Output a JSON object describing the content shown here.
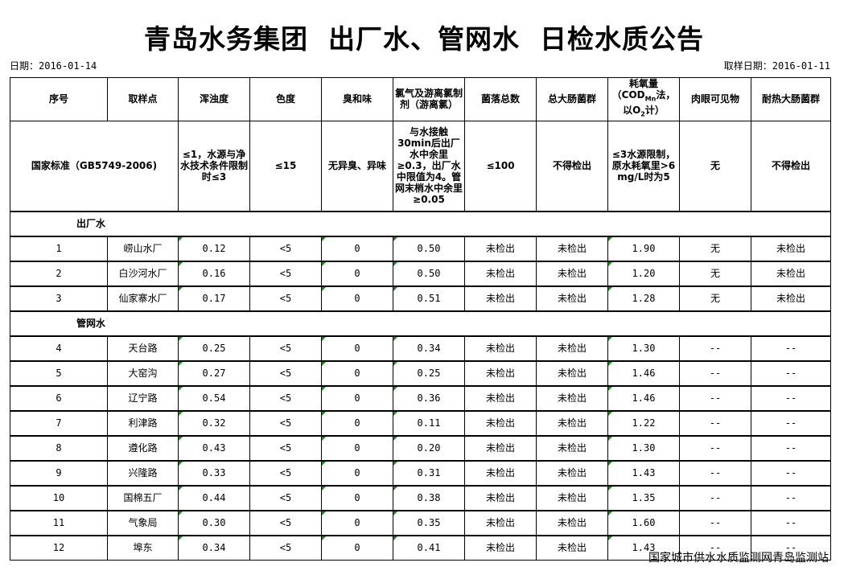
{
  "title": "青岛水务集团  出厂水、管网水  日检水质公告",
  "report_date_label": "日期：2016-01-14",
  "sampling_date_label": "取样日期：2016-01-11",
  "headers": [
    "序号",
    "取样点",
    "浑浊度",
    "色度",
    "臭和味",
    "氯气及游离氯制剂（游离氯）",
    "菌落总数",
    "总大肠菌群",
    "耗氧量（COD_Mn法，以O2计）",
    "肉眼可见物",
    "耐热大肠菌群"
  ],
  "cod_header": {
    "main": "耗氧量",
    "line2_pre": "（COD",
    "line2_sub": "Mn",
    "line2_post": "法，",
    "line3_pre": "以O",
    "line3_sub": "2",
    "line3_post": "计）"
  },
  "standard": {
    "label": "国家标准（GB5749-2006)",
    "values": [
      "≤1，水源与净水技术条件限制时≤3",
      "≤15",
      "无异臭、异味",
      "与水接触30min后出厂水中余里≥0.3，出厂水中限值为4。管网末梢水中余里≥0.05",
      "≤100",
      "不得检出",
      "≤3水源限制，原水耗氧里>6 mg/L时为5",
      "无",
      "不得检出"
    ]
  },
  "sections": [
    {
      "name": "出厂水",
      "rows": [
        [
          "1",
          "崂山水厂",
          "0.12",
          "<5",
          "0",
          "0.50",
          "未检出",
          "未检出",
          "1.90",
          "无",
          "未检出"
        ],
        [
          "2",
          "白沙河水厂",
          "0.16",
          "<5",
          "0",
          "0.50",
          "未检出",
          "未检出",
          "1.20",
          "无",
          "未检出"
        ],
        [
          "3",
          "仙家寨水厂",
          "0.17",
          "<5",
          "0",
          "0.51",
          "未检出",
          "未检出",
          "1.28",
          "无",
          "未检出"
        ]
      ]
    },
    {
      "name": "管网水",
      "rows": [
        [
          "4",
          "天台路",
          "0.25",
          "<5",
          "0",
          "0.34",
          "未检出",
          "未检出",
          "1.30",
          "--",
          "--"
        ],
        [
          "5",
          "大窑沟",
          "0.27",
          "<5",
          "0",
          "0.25",
          "未检出",
          "未检出",
          "1.46",
          "--",
          "--"
        ],
        [
          "6",
          "辽宁路",
          "0.54",
          "<5",
          "0",
          "0.36",
          "未检出",
          "未检出",
          "1.46",
          "--",
          "--"
        ],
        [
          "7",
          "利津路",
          "0.32",
          "<5",
          "0",
          "0.11",
          "未检出",
          "未检出",
          "1.22",
          "--",
          "--"
        ],
        [
          "8",
          "遵化路",
          "0.43",
          "<5",
          "0",
          "0.20",
          "未检出",
          "未检出",
          "1.30",
          "--",
          "--"
        ],
        [
          "9",
          "兴隆路",
          "0.33",
          "<5",
          "0",
          "0.31",
          "未检出",
          "未检出",
          "1.43",
          "--",
          "--"
        ],
        [
          "10",
          "国棉五厂",
          "0.44",
          "<5",
          "0",
          "0.38",
          "未检出",
          "未检出",
          "1.35",
          "--",
          "--"
        ],
        [
          "11",
          "气象局",
          "0.30",
          "<5",
          "0",
          "0.35",
          "未检出",
          "未检出",
          "1.60",
          "--",
          "--"
        ],
        [
          "12",
          "埠东",
          "0.34",
          "<5",
          "0",
          "0.41",
          "未检出",
          "未检出",
          "1.43",
          "--",
          "--"
        ]
      ]
    }
  ],
  "footer": "国家城市供水水质监测网青岛监测站",
  "colors": {
    "error_indicator": "#1a8a1a"
  }
}
